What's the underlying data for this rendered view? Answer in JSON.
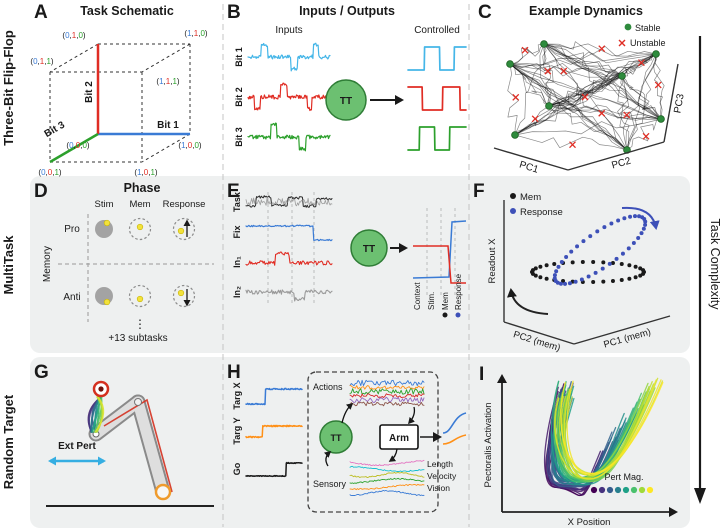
{
  "figure": {
    "rows": [
      {
        "label": "Three-Bit Flip-Flop"
      },
      {
        "label": "MultiTask"
      },
      {
        "label": "Random Target"
      }
    ],
    "complexity_label": "Task Complexity"
  },
  "colors": {
    "tt_fill": "#6cc071",
    "tt_stroke": "#2f7d36",
    "row_bg": "#eef0f0",
    "viridis": [
      "#440154",
      "#46327e",
      "#365c8d",
      "#277f8e",
      "#1fa187",
      "#4ac16d",
      "#a0da39",
      "#fde725"
    ]
  },
  "panelA": {
    "letter": "A",
    "title": "Task Schematic",
    "bit_colors": [
      "#3a7bd5",
      "#e02d24",
      "#2ca02c"
    ],
    "axis_labels": [
      "Bit 1",
      "Bit 2",
      "Bit 3"
    ],
    "vertices": [
      {
        "bits": [
          "0",
          "1",
          "0"
        ]
      },
      {
        "bits": [
          "1",
          "1",
          "0"
        ]
      },
      {
        "bits": [
          "1",
          "1",
          "1"
        ]
      },
      {
        "bits": [
          "0",
          "1",
          "1"
        ]
      },
      {
        "bits": [
          "0",
          "0",
          "0"
        ]
      },
      {
        "bits": [
          "1",
          "0",
          "0"
        ]
      },
      {
        "bits": [
          "0",
          "0",
          "1"
        ]
      },
      {
        "bits": [
          "1",
          "0",
          "1"
        ]
      }
    ]
  },
  "panelB": {
    "letter": "B",
    "title": "Inputs / Outputs",
    "inputs_label": "Inputs",
    "controlled_label": "Controlled",
    "tt_label": "TT",
    "traces": [
      {
        "label": "Bit 1",
        "color": "#45b6e8"
      },
      {
        "label": "Bit 2",
        "color": "#e02d24"
      },
      {
        "label": "Bit 3",
        "color": "#2ca02c"
      }
    ]
  },
  "panelC": {
    "letter": "C",
    "title": "Example Dynamics",
    "legend": [
      {
        "label": "Stable",
        "color": "#2e8b3d"
      },
      {
        "label": "Unstable",
        "color": "#e02d24"
      }
    ],
    "axis_labels": [
      "PC1",
      "PC2",
      "PC3"
    ]
  },
  "panelD": {
    "letter": "D",
    "title": "Phase",
    "columns": [
      "Stim",
      "Mem",
      "Response"
    ],
    "row_labels": [
      "Pro",
      "Anti"
    ],
    "side_label": "Memory",
    "ellipsis": "⋮",
    "footer": "+13 subtasks"
  },
  "panelE": {
    "letter": "E",
    "traces": [
      {
        "label": "Task",
        "color": "#2b2b2b"
      },
      {
        "label": "Fix",
        "color": "#3a7bd5"
      },
      {
        "label": "In₁",
        "color": "#e02d24"
      },
      {
        "label": "In₂",
        "color": "#9a9a9a"
      }
    ],
    "tt_label": "TT",
    "phases": [
      {
        "label": "Context"
      },
      {
        "label": "Stim."
      },
      {
        "label": "Mem",
        "dot": "#1a1a1a"
      },
      {
        "label": "Response",
        "dot": "#3d50b8"
      }
    ]
  },
  "panelF": {
    "letter": "F",
    "legend": [
      {
        "label": "Mem",
        "color": "#1a1a1a"
      },
      {
        "label": "Response",
        "color": "#3d50b8"
      }
    ],
    "ylabel": "Readout X",
    "xlabel_left": "PC2 (mem)",
    "xlabel_right": "PC1 (mem)"
  },
  "panelG": {
    "letter": "G",
    "pert_label": "Ext Pert",
    "pert_color": "#35aee2"
  },
  "panelH": {
    "letter": "H",
    "traces": [
      {
        "label": "Targ X",
        "color": "#3a7bd5"
      },
      {
        "label": "Targ Y",
        "color": "#ff9017"
      },
      {
        "label": "Go",
        "color": "#1a1a1a"
      }
    ],
    "tt_label": "TT",
    "arm_label": "Arm",
    "actions_label": "Actions",
    "sensory_label": "Sensory",
    "sensory_channels": [
      "Length",
      "Velocity",
      "Vision"
    ]
  },
  "panelI": {
    "letter": "I",
    "ylabel": "Pectoralis Activation",
    "xlabel": "X Position",
    "legend_label": "Pert Mag."
  }
}
